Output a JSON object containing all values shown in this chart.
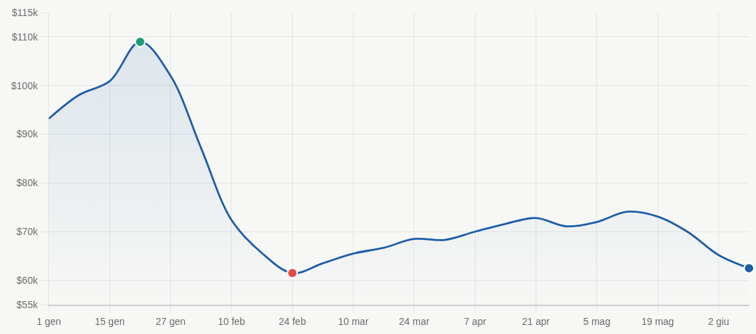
{
  "chart_data": {
    "type": "area",
    "categories": [
      "1 gen",
      null,
      "15 gen",
      null,
      "27 gen",
      null,
      "10 feb",
      null,
      "24 feb",
      null,
      "10 mar",
      null,
      "24 mar",
      null,
      "7 apr",
      null,
      "21 apr",
      null,
      "5 mag",
      null,
      "19 mag",
      null,
      "2 giu",
      null
    ],
    "ylim": [
      55,
      115
    ],
    "yticks": [
      {
        "value": 55,
        "label": "$55k"
      },
      {
        "value": 60,
        "label": "$60k"
      },
      {
        "value": 70,
        "label": "$70k"
      },
      {
        "value": 80,
        "label": "$80k"
      },
      {
        "value": 90,
        "label": "$90k"
      },
      {
        "value": 100,
        "label": "$100k"
      },
      {
        "value": 110,
        "label": "$110k"
      },
      {
        "value": 115,
        "label": "$115k"
      }
    ],
    "grid": true,
    "series": [
      {
        "color": "#1c5ea8",
        "values": [
          93.2,
          98.1,
          100.9,
          109,
          102,
          87.2,
          72.4,
          65.6,
          61.5,
          63.5,
          65.5,
          66.7,
          68.5,
          68.3,
          70.0,
          71.6,
          72.8,
          71.1,
          72.0,
          74.1,
          73.1,
          69.9,
          65.2,
          62.5
        ]
      },
      {
        "type": "scatter",
        "marker": "circle",
        "color": "#1b9e77",
        "values": [
          null,
          null,
          null,
          109,
          null,
          null,
          null,
          null,
          null,
          null,
          null,
          null,
          null,
          null,
          null,
          null,
          null,
          null,
          null,
          null,
          null,
          null,
          null,
          null
        ]
      },
      {
        "type": "scatter",
        "marker": "circle",
        "color": "#e24a4a",
        "values": [
          null,
          null,
          null,
          null,
          null,
          null,
          null,
          null,
          61.5,
          null,
          null,
          null,
          null,
          null,
          null,
          null,
          null,
          null,
          null,
          null,
          null,
          null,
          null,
          null
        ]
      },
      {
        "type": "scatter",
        "marker": "circle",
        "color": "#1c5ea8",
        "values": [
          null,
          null,
          null,
          null,
          null,
          null,
          null,
          null,
          null,
          null,
          null,
          null,
          null,
          null,
          null,
          null,
          null,
          null,
          null,
          null,
          null,
          null,
          null,
          62.5
        ]
      }
    ]
  }
}
